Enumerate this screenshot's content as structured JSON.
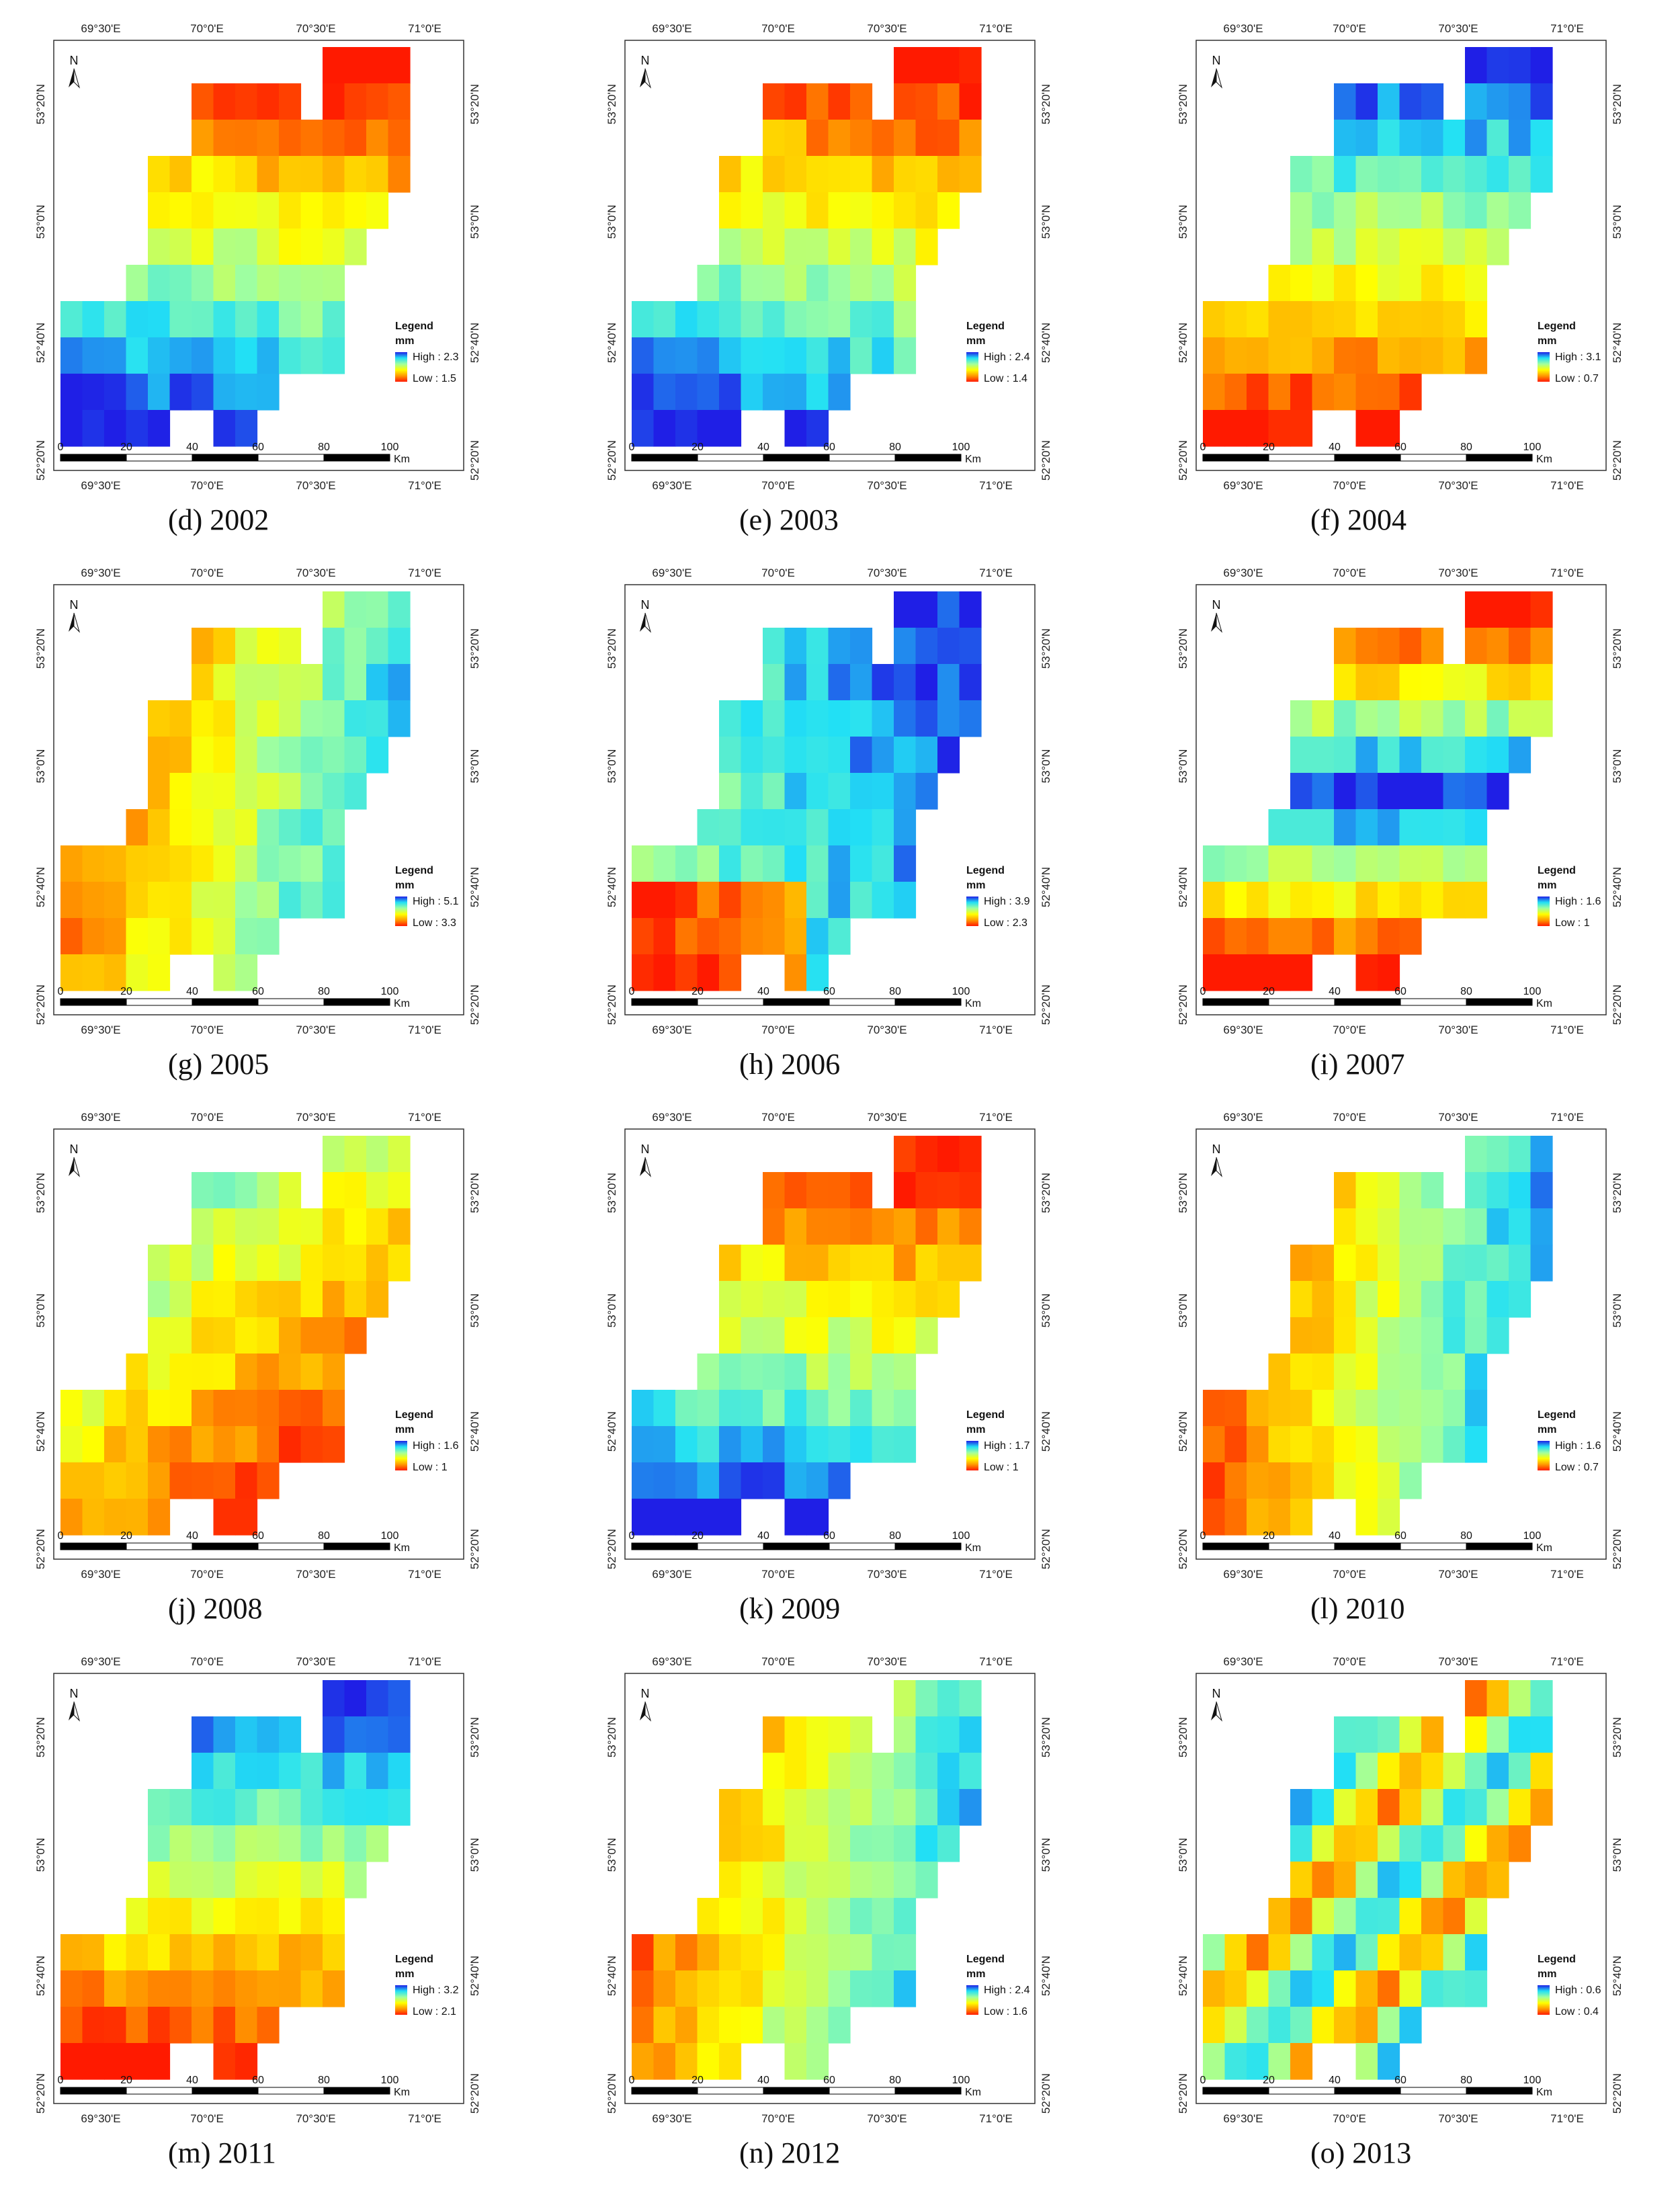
{
  "axes": {
    "lon_labels": [
      "69°30'E",
      "70°0'E",
      "70°30'E",
      "71°0'E"
    ],
    "lat_labels": [
      "52°20'N",
      "52°40'N",
      "53°0'N",
      "53°20'N"
    ]
  },
  "north_label": "N",
  "legend": {
    "title": "Legend",
    "unit": "mm",
    "high_prefix": "High : ",
    "low_prefix": "Low : "
  },
  "scalebar": {
    "ticks": [
      "0",
      "20",
      "40",
      "60",
      "80",
      "100"
    ],
    "unit": "Km"
  },
  "colors": {
    "high": "#1f1fe6",
    "mid_blue": "#22e0f5",
    "mid_green": "#9fffa0",
    "mid_yellow": "#ffff00",
    "mid_orange": "#ff9900",
    "low": "#ff1a00"
  },
  "panels": [
    {
      "caption": "(d) 2002",
      "high": "2.3",
      "low": "1.5",
      "pattern": "nlow"
    },
    {
      "caption": "(e) 2003",
      "high": "2.4",
      "low": "1.4",
      "pattern": "nlow"
    },
    {
      "caption": "(f) 2004",
      "high": "3.1",
      "low": "0.7",
      "pattern": "nhigh"
    },
    {
      "caption": "(g) 2005",
      "high": "5.1",
      "low": "3.3",
      "pattern": "ehigh"
    },
    {
      "caption": "(h) 2006",
      "high": "3.9",
      "low": "2.3",
      "pattern": "nlow_sw"
    },
    {
      "caption": "(i) 2007",
      "high": "1.6",
      "low": "1",
      "pattern": "band"
    },
    {
      "caption": "(j) 2008",
      "high": "1.6",
      "low": "1",
      "pattern": "nwhigh"
    },
    {
      "caption": "(k) 2009",
      "high": "1.7",
      "low": "1",
      "pattern": "nlow"
    },
    {
      "caption": "(l) 2010",
      "high": "1.6",
      "low": "0.7",
      "pattern": "ehigh2"
    },
    {
      "caption": "(m) 2011",
      "high": "3.2",
      "low": "2.1",
      "pattern": "nhigh"
    },
    {
      "caption": "(n) 2012",
      "high": "2.4",
      "low": "1.6",
      "pattern": "ehigh"
    },
    {
      "caption": "(o) 2013",
      "high": "0.6",
      "low": "0.4",
      "pattern": "mixed"
    }
  ]
}
